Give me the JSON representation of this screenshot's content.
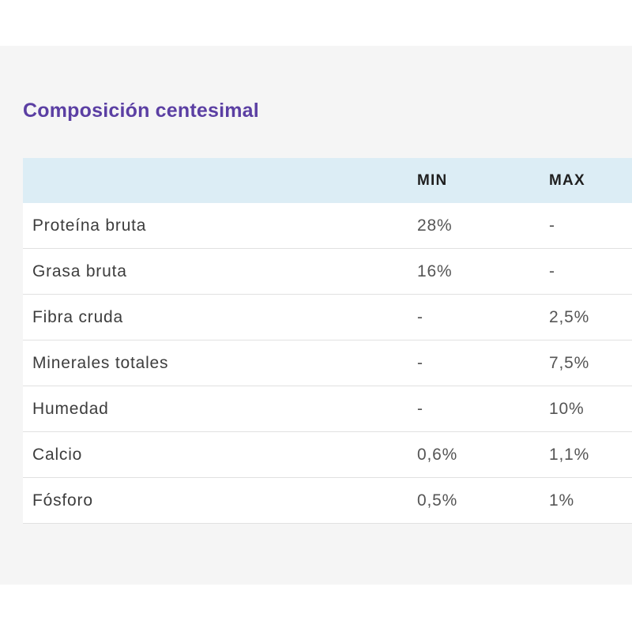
{
  "section": {
    "title": "Composición centesimal"
  },
  "table": {
    "headers": [
      "",
      "MIN",
      "MAX"
    ],
    "rows": [
      {
        "name": "Proteína bruta",
        "min": "28%",
        "max": "-"
      },
      {
        "name": "Grasa bruta",
        "min": "16%",
        "max": "-"
      },
      {
        "name": "Fibra cruda",
        "min": "-",
        "max": "2,5%"
      },
      {
        "name": "Minerales totales",
        "min": "-",
        "max": "7,5%"
      },
      {
        "name": "Humedad",
        "min": "-",
        "max": "10%"
      },
      {
        "name": "Calcio",
        "min": "0,6%",
        "max": "1,1%"
      },
      {
        "name": "Fósforo",
        "min": "0,5%",
        "max": "1%"
      }
    ]
  }
}
